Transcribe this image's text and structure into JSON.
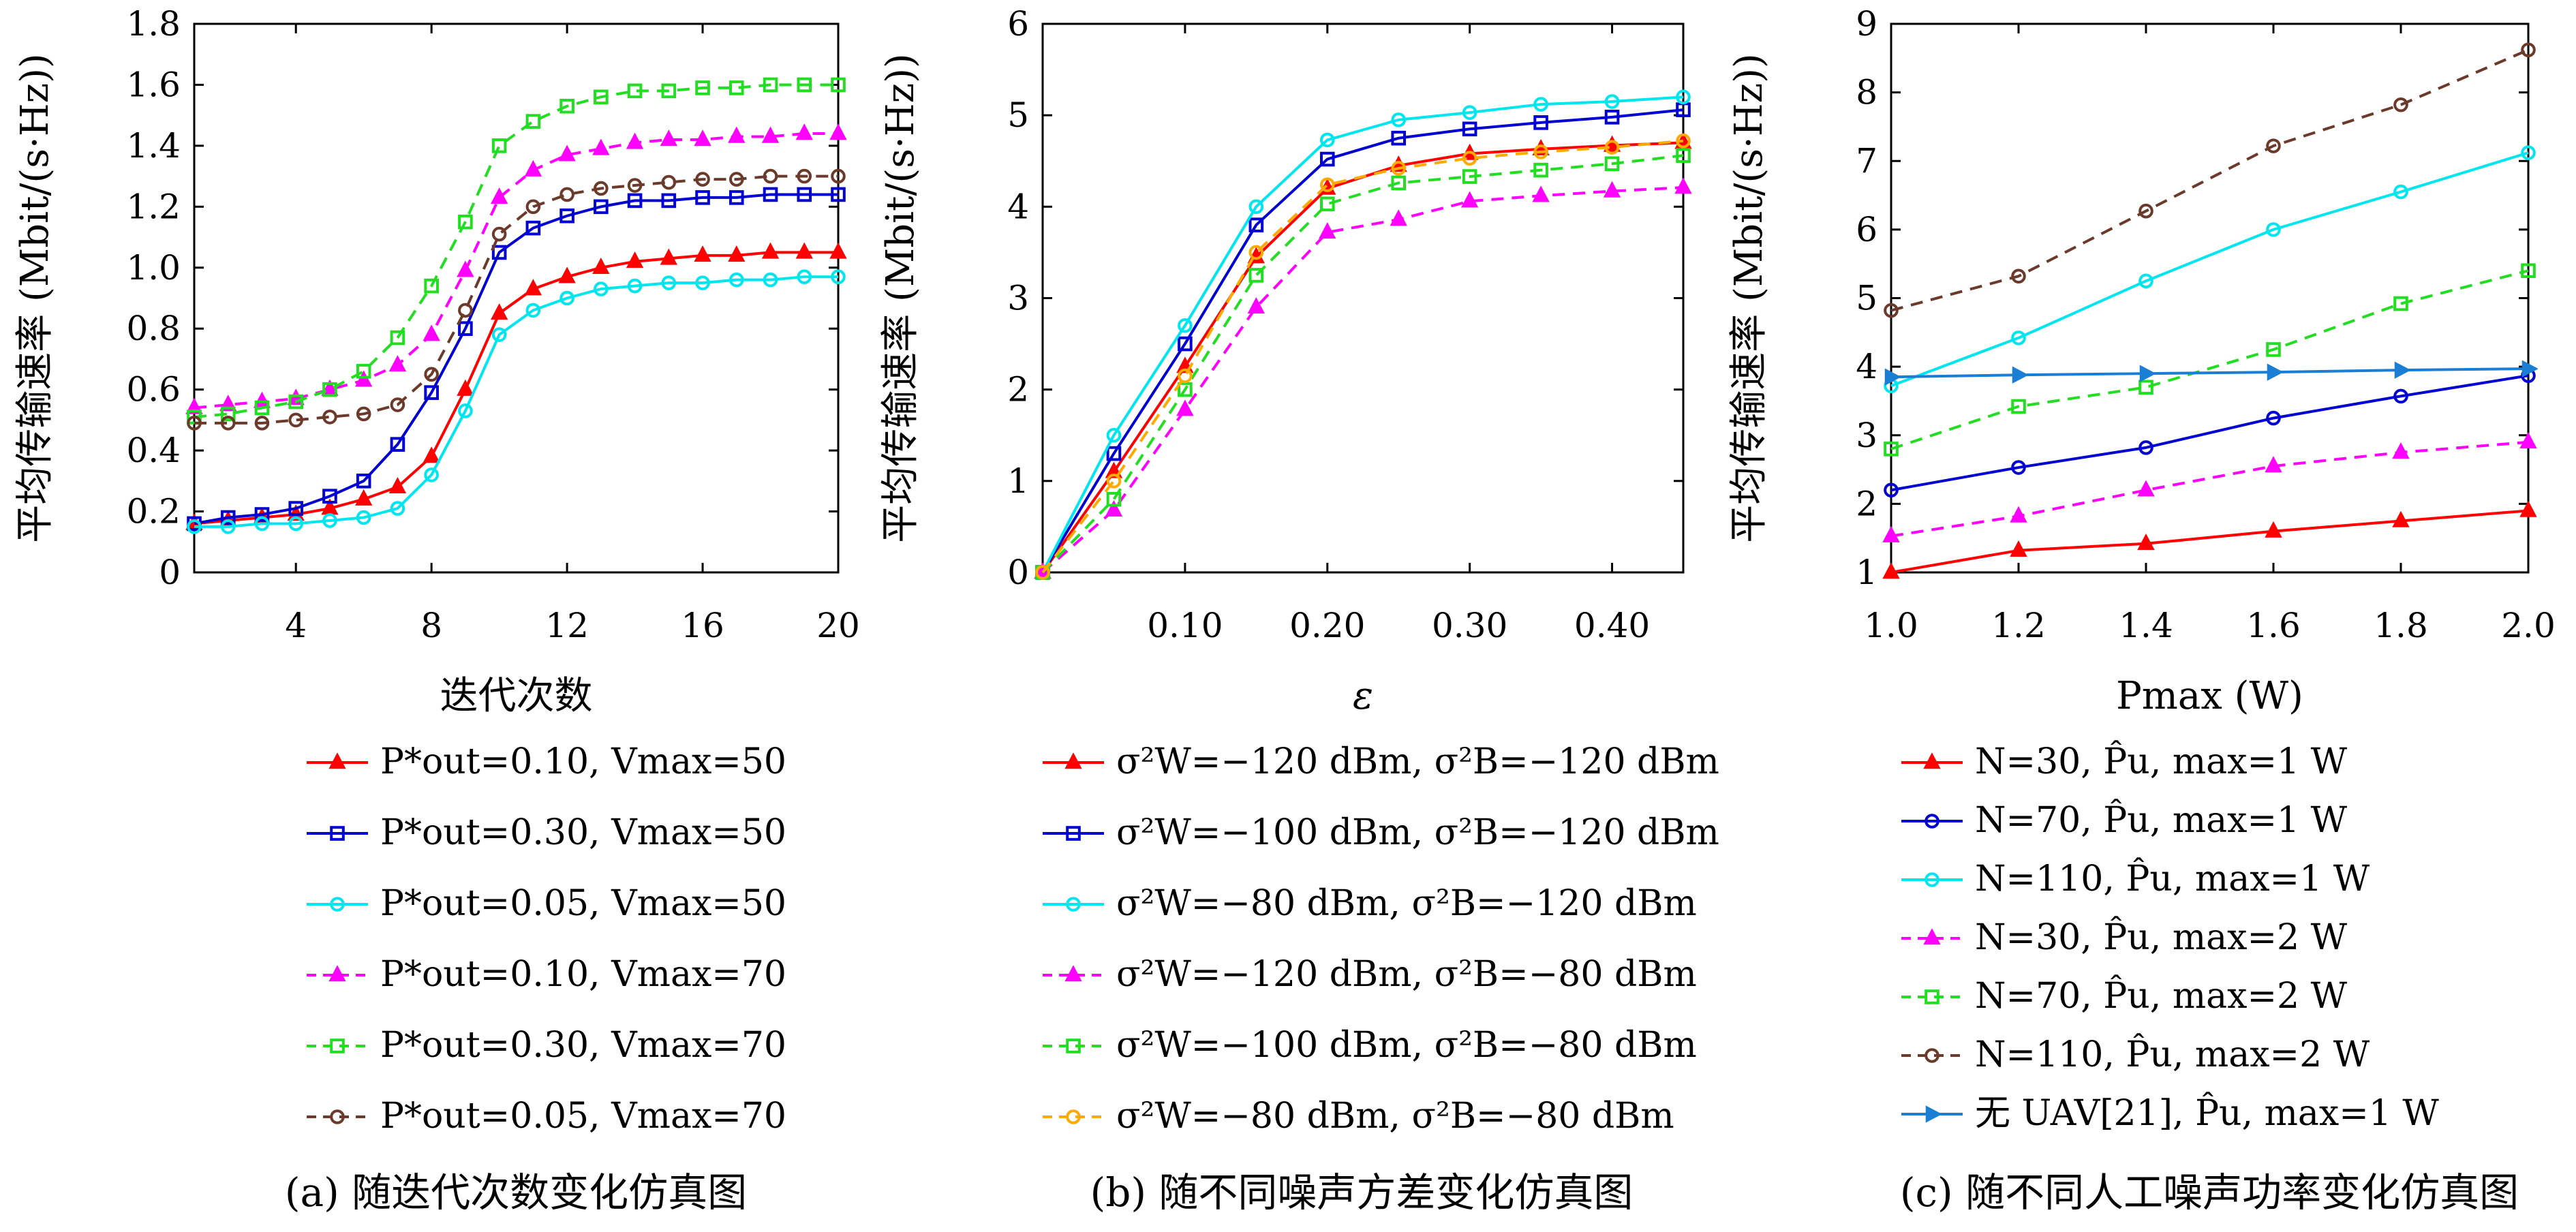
{
  "charts": [
    {
      "type": "line",
      "xlabel": "迭代次数",
      "ylabel": "平均传输速率 (Mbit/(s·Hz))",
      "caption": "(a) 随迭代次数变化仿真图",
      "xlim": [
        1,
        20
      ],
      "ylim": [
        0,
        1.8
      ],
      "xticks": [
        "4",
        "8",
        "12",
        "16",
        "20"
      ],
      "yticks": [
        "0",
        "0.2",
        "0.4",
        "0.6",
        "0.8",
        "1.0",
        "1.2",
        "1.4",
        "1.6",
        "1.8"
      ],
      "x": [
        1,
        2,
        3,
        4,
        5,
        6,
        7,
        8,
        9,
        10,
        11,
        12,
        13,
        14,
        15,
        16,
        17,
        18,
        19,
        20
      ],
      "series": [
        {
          "legend": "P*out=0.10, Vmax=50",
          "color": "#ff0000",
          "dash": "",
          "marker": "triangle",
          "values": [
            0.16,
            0.17,
            0.18,
            0.19,
            0.21,
            0.24,
            0.28,
            0.38,
            0.6,
            0.85,
            0.93,
            0.97,
            1.0,
            1.02,
            1.03,
            1.04,
            1.04,
            1.05,
            1.05,
            1.05
          ]
        },
        {
          "legend": "P*out=0.30, Vmax=50",
          "color": "#0000d0",
          "dash": "",
          "marker": "square",
          "values": [
            0.16,
            0.18,
            0.19,
            0.21,
            0.25,
            0.3,
            0.42,
            0.59,
            0.8,
            1.05,
            1.13,
            1.17,
            1.2,
            1.22,
            1.22,
            1.23,
            1.23,
            1.24,
            1.24,
            1.24
          ]
        },
        {
          "legend": "P*out=0.05, Vmax=50",
          "color": "#00e5ee",
          "dash": "",
          "marker": "circle",
          "values": [
            0.15,
            0.15,
            0.16,
            0.16,
            0.17,
            0.18,
            0.21,
            0.32,
            0.53,
            0.78,
            0.86,
            0.9,
            0.93,
            0.94,
            0.95,
            0.95,
            0.96,
            0.96,
            0.97,
            0.97
          ]
        },
        {
          "legend": "P*out=0.10, Vmax=70",
          "color": "#ff00ff",
          "dash": "18,12",
          "marker": "triangle",
          "values": [
            0.54,
            0.55,
            0.56,
            0.57,
            0.6,
            0.63,
            0.68,
            0.78,
            0.99,
            1.23,
            1.32,
            1.37,
            1.39,
            1.41,
            1.42,
            1.42,
            1.43,
            1.43,
            1.44,
            1.44
          ]
        },
        {
          "legend": "P*out=0.30, Vmax=70",
          "color": "#22dd22",
          "dash": "18,12",
          "marker": "square",
          "values": [
            0.51,
            0.52,
            0.54,
            0.56,
            0.6,
            0.66,
            0.77,
            0.94,
            1.15,
            1.4,
            1.48,
            1.53,
            1.56,
            1.58,
            1.58,
            1.59,
            1.59,
            1.6,
            1.6,
            1.6
          ]
        },
        {
          "legend": "P*out=0.05, Vmax=70",
          "color": "#6b3a2a",
          "dash": "18,12",
          "marker": "circle",
          "values": [
            0.49,
            0.49,
            0.49,
            0.5,
            0.51,
            0.52,
            0.55,
            0.65,
            0.86,
            1.11,
            1.2,
            1.24,
            1.26,
            1.27,
            1.28,
            1.29,
            1.29,
            1.3,
            1.3,
            1.3
          ]
        }
      ]
    },
    {
      "type": "line",
      "xlabel": "ε",
      "ylabel": "平均传输速率 (Mbit/(s·Hz))",
      "caption": "(b) 随不同噪声方差变化仿真图",
      "xlim": [
        0,
        0.45
      ],
      "ylim": [
        0,
        6
      ],
      "xticks": [
        "0.10",
        "0.20",
        "0.30",
        "0.40"
      ],
      "yticks": [
        "0",
        "1",
        "2",
        "3",
        "4",
        "5",
        "6"
      ],
      "x": [
        0,
        0.05,
        0.1,
        0.15,
        0.2,
        0.25,
        0.3,
        0.35,
        0.4,
        0.45
      ],
      "series": [
        {
          "legend": "σ²W=−120 dBm, σ²B=−120 dBm",
          "color": "#ff0000",
          "dash": "",
          "marker": "triangle",
          "values": [
            0,
            1.1,
            2.25,
            3.45,
            4.2,
            4.45,
            4.58,
            4.63,
            4.67,
            4.7
          ]
        },
        {
          "legend": "σ²W=−100 dBm, σ²B=−120 dBm",
          "color": "#0000d0",
          "dash": "",
          "marker": "square",
          "values": [
            0,
            1.3,
            2.5,
            3.8,
            4.52,
            4.75,
            4.85,
            4.92,
            4.98,
            5.06
          ]
        },
        {
          "legend": "σ²W=−80 dBm, σ²B=−120 dBm",
          "color": "#00e5ee",
          "dash": "",
          "marker": "circle",
          "values": [
            0,
            1.5,
            2.7,
            4.0,
            4.73,
            4.95,
            5.03,
            5.12,
            5.15,
            5.2
          ]
        },
        {
          "legend": "σ²W=−120 dBm, σ²B=−80 dBm",
          "color": "#ff00ff",
          "dash": "18,12",
          "marker": "triangle",
          "values": [
            0,
            0.68,
            1.78,
            2.9,
            3.72,
            3.86,
            4.06,
            4.12,
            4.17,
            4.21
          ]
        },
        {
          "legend": "σ²W=−100 dBm, σ²B=−80 dBm",
          "color": "#22dd22",
          "dash": "18,12",
          "marker": "square",
          "values": [
            0,
            0.8,
            2.0,
            3.25,
            4.03,
            4.26,
            4.33,
            4.4,
            4.47,
            4.56
          ]
        },
        {
          "legend": "σ²W=−80 dBm, σ²B=−80 dBm",
          "color": "#ffaa00",
          "dash": "18,12",
          "marker": "circle",
          "values": [
            0,
            1.0,
            2.15,
            3.5,
            4.24,
            4.42,
            4.53,
            4.6,
            4.65,
            4.72
          ]
        }
      ]
    },
    {
      "type": "line",
      "xlabel": "Pmax (W)",
      "ylabel": "平均传输速率 (Mbit/(s·Hz))",
      "caption": "(c) 随不同人工噪声功率变化仿真图",
      "xlim": [
        1.0,
        2.0
      ],
      "ylim": [
        1,
        9
      ],
      "xticks": [
        "1.0",
        "1.2",
        "1.4",
        "1.6",
        "1.8",
        "2.0"
      ],
      "yticks": [
        "1",
        "2",
        "3",
        "4",
        "5",
        "6",
        "7",
        "8",
        "9"
      ],
      "x": [
        1.0,
        1.2,
        1.4,
        1.6,
        1.8,
        2.0
      ],
      "series": [
        {
          "legend": "N=30, P̂u, max=1 W",
          "color": "#ff0000",
          "dash": "",
          "marker": "triangle",
          "values": [
            1.0,
            1.32,
            1.42,
            1.6,
            1.75,
            1.9
          ]
        },
        {
          "legend": "N=70, P̂u, max=1 W",
          "color": "#0000d0",
          "dash": "",
          "marker": "circle",
          "values": [
            2.2,
            2.53,
            2.82,
            3.25,
            3.57,
            3.87
          ]
        },
        {
          "legend": "N=110, P̂u, max=1 W",
          "color": "#00e5ee",
          "dash": "",
          "marker": "circle",
          "values": [
            3.72,
            4.42,
            5.25,
            6.0,
            6.55,
            7.12
          ]
        },
        {
          "legend": "N=30, P̂u, max=2 W",
          "color": "#ff00ff",
          "dash": "18,12",
          "marker": "triangle",
          "values": [
            1.53,
            1.82,
            2.2,
            2.55,
            2.75,
            2.9
          ]
        },
        {
          "legend": "N=70, P̂u, max=2 W",
          "color": "#22dd22",
          "dash": "18,12",
          "marker": "square",
          "values": [
            2.8,
            3.42,
            3.7,
            4.25,
            4.92,
            5.4
          ]
        },
        {
          "legend": "N=110, P̂u, max=2 W",
          "color": "#6b3a2a",
          "dash": "18,12",
          "marker": "circle",
          "values": [
            4.82,
            5.32,
            6.27,
            7.22,
            7.82,
            8.62
          ]
        },
        {
          "legend": "无 UAV[21], P̂u, max=1 W",
          "color": "#1a7fd4",
          "dash": "",
          "marker": "tri-right",
          "values": [
            3.85,
            3.88,
            3.9,
            3.92,
            3.95,
            3.97
          ]
        }
      ]
    }
  ]
}
